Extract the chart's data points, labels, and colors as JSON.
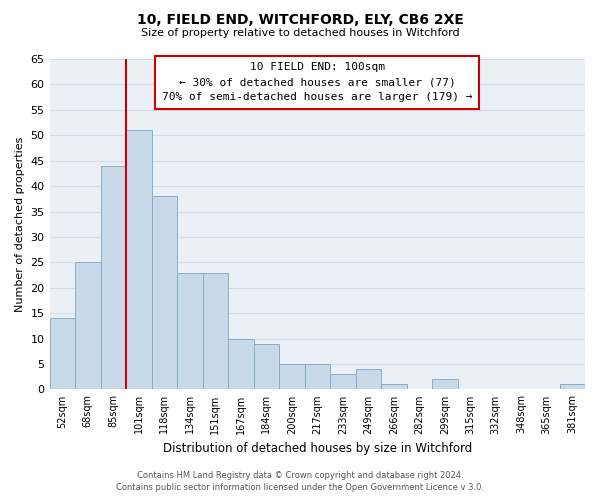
{
  "title": "10, FIELD END, WITCHFORD, ELY, CB6 2XE",
  "subtitle": "Size of property relative to detached houses in Witchford",
  "xlabel": "Distribution of detached houses by size in Witchford",
  "ylabel": "Number of detached properties",
  "bar_color": "#c8d9ea",
  "bar_edge_color": "#8aaec8",
  "categories": [
    "52sqm",
    "68sqm",
    "85sqm",
    "101sqm",
    "118sqm",
    "134sqm",
    "151sqm",
    "167sqm",
    "184sqm",
    "200sqm",
    "217sqm",
    "233sqm",
    "249sqm",
    "266sqm",
    "282sqm",
    "299sqm",
    "315sqm",
    "332sqm",
    "348sqm",
    "365sqm",
    "381sqm"
  ],
  "values": [
    14,
    25,
    44,
    51,
    38,
    23,
    23,
    10,
    9,
    5,
    5,
    3,
    4,
    1,
    0,
    2,
    0,
    0,
    0,
    0,
    1
  ],
  "ylim": [
    0,
    65
  ],
  "yticks": [
    0,
    5,
    10,
    15,
    20,
    25,
    30,
    35,
    40,
    45,
    50,
    55,
    60,
    65
  ],
  "vline_index": 3,
  "vline_color": "#cc0000",
  "annotation_title": "10 FIELD END: 100sqm",
  "annotation_line1": "← 30% of detached houses are smaller (77)",
  "annotation_line2": "70% of semi-detached houses are larger (179) →",
  "footer_line1": "Contains HM Land Registry data © Crown copyright and database right 2024.",
  "footer_line2": "Contains public sector information licensed under the Open Government Licence v 3.0.",
  "background_color": "#ffffff",
  "grid_color": "#d0dce8",
  "plot_bg_color": "#eaf0f6"
}
